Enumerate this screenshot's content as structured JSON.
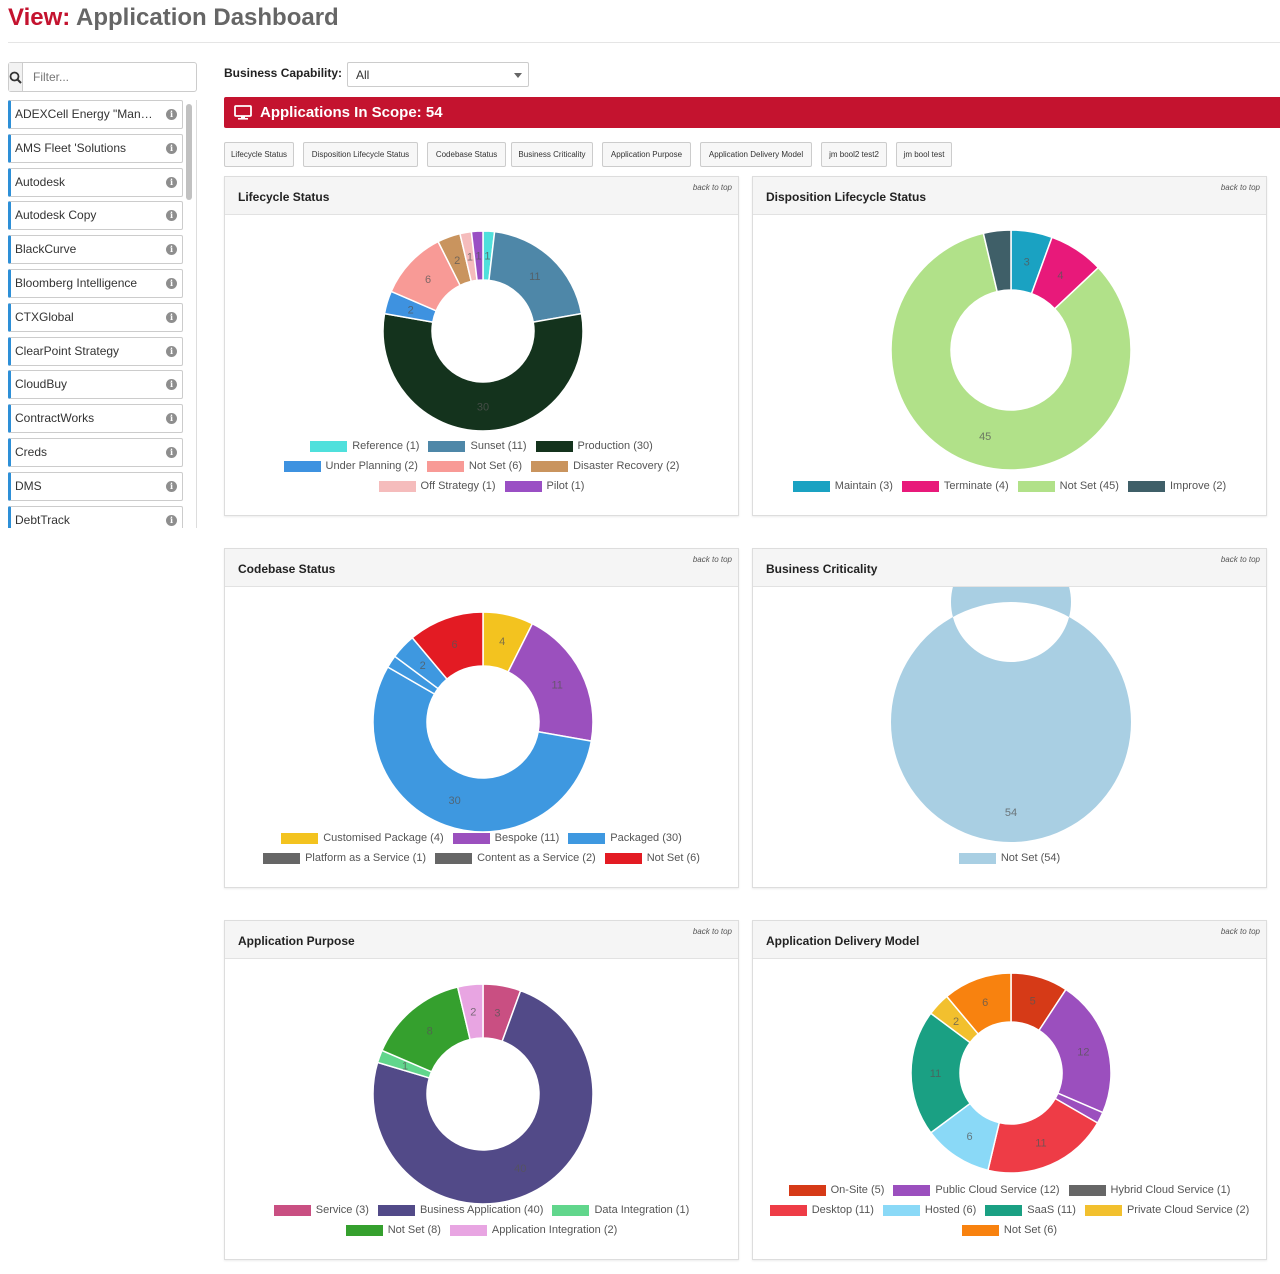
{
  "header": {
    "prefix": "View:",
    "title": "Application Dashboard"
  },
  "sidebar": {
    "search_placeholder": "Filter...",
    "info_glyph": "i",
    "items": [
      "ADEXCell Energy \"Manager\"",
      "AMS Fleet 'Solutions",
      "Autodesk",
      "Autodesk Copy",
      "BlackCurve",
      "Bloomberg Intelligence",
      "CTXGlobal",
      "ClearPoint Strategy",
      "CloudBuy",
      "ContractWorks",
      "Creds",
      "DMS",
      "DebtTrack"
    ]
  },
  "filter": {
    "label": "Business Capability:",
    "value": "All"
  },
  "scope": {
    "text": "Applications In Scope: 54",
    "icon": "monitor-icon"
  },
  "tabs": [
    "Lifecycle Status",
    "Disposition Lifecycle Status",
    "Codebase Status",
    "Business Criticality",
    "Application Purpose",
    "Application Delivery Model",
    "jm bool2 test2",
    "jm bool test"
  ],
  "back_to_top": "back to top",
  "chart_data": [
    {
      "type": "pie",
      "title": "Lifecycle Status",
      "labels": [
        "Reference",
        "Sunset",
        "Production",
        "Under Planning",
        "Not Set",
        "Disaster Recovery",
        "Off Strategy",
        "Pilot"
      ],
      "values": [
        1,
        11,
        30,
        2,
        6,
        2,
        1,
        1
      ],
      "colors": [
        "#4fe0dc",
        "#4e87a8",
        "#14331d",
        "#3e92e0",
        "#f89a96",
        "#c9945e",
        "#f5bcbc",
        "#9a4fc4"
      ],
      "slice_labels": [
        "1",
        "11",
        "30",
        "2",
        "6",
        "2",
        "1",
        "1"
      ],
      "legend": [
        [
          "Reference (1)",
          "Sunset (11)",
          "Production (30)"
        ],
        [
          "Under Planning (2)",
          "Not Set (6)",
          "Disaster Recovery (2)"
        ],
        [
          "Off Strategy (1)",
          "Pilot (1)"
        ]
      ]
    },
    {
      "type": "pie",
      "title": "Disposition Lifecycle Status",
      "labels": [
        "Maintain",
        "Terminate",
        "Not Set",
        "Improve"
      ],
      "values": [
        3,
        4,
        45,
        2
      ],
      "colors": [
        "#1aa2c2",
        "#e8197a",
        "#b1e189",
        "#3f5f68"
      ],
      "slice_labels": [
        "3",
        "4",
        "45",
        ""
      ],
      "legend": [
        [
          "Maintain (3)",
          "Terminate (4)",
          "Not Set (45)",
          "Improve (2)"
        ]
      ]
    },
    {
      "type": "pie",
      "title": "Codebase Status",
      "labels": [
        "Customised Package",
        "Bespoke",
        "Packaged",
        "Platform as a Service",
        "Content as a Service",
        "Not Set"
      ],
      "values": [
        4,
        11,
        30,
        1,
        2,
        6
      ],
      "colors": [
        "#f3c31f",
        "#9b50be",
        "#3e98e0",
        "#3e98e0",
        "#3e98e0",
        "#e31b23"
      ],
      "legend_colors": [
        "#f3c31f",
        "#9b50be",
        "#3e98e0",
        "#666666",
        "#666666",
        "#e31b23"
      ],
      "slice_labels": [
        "4",
        "11",
        "30",
        "",
        "2",
        "6"
      ],
      "legend": [
        [
          "Customised Package (4)",
          "Bespoke (11)",
          "Packaged (30)"
        ],
        [
          "Platform as a Service (1)",
          "Content as a Service (2)",
          "Not Set (6)"
        ]
      ]
    },
    {
      "type": "pie",
      "title": "Business Criticality",
      "labels": [
        "Not Set"
      ],
      "values": [
        54
      ],
      "colors": [
        "#a9cfe3"
      ],
      "slice_labels": [
        "54"
      ],
      "legend": [
        [
          "Not Set (54)"
        ]
      ]
    },
    {
      "type": "pie",
      "title": "Application Purpose",
      "labels": [
        "Service",
        "Business Application",
        "Data Integration",
        "Not Set",
        "Application Integration"
      ],
      "values": [
        3,
        40,
        1,
        8,
        2
      ],
      "colors": [
        "#c94f82",
        "#524a88",
        "#61d68c",
        "#35a02e",
        "#e8a5e2"
      ],
      "slice_labels": [
        "3",
        "40",
        "1",
        "8",
        "2"
      ],
      "legend": [
        [
          "Service (3)",
          "Business Application (40)",
          "Data Integration (1)"
        ],
        [
          "Not Set (8)",
          "Application Integration (2)"
        ]
      ]
    },
    {
      "type": "pie",
      "title": "Application Delivery Model",
      "labels": [
        "On-Site",
        "Public Cloud Service",
        "Hybrid Cloud Service",
        "Desktop",
        "Hosted",
        "SaaS",
        "Private Cloud Service",
        "Not Set"
      ],
      "values": [
        5,
        12,
        1,
        11,
        6,
        11,
        2,
        6
      ],
      "colors": [
        "#d63a17",
        "#9b4fbe",
        "#9b4fbe",
        "#ee3c46",
        "#8ad9f7",
        "#1aa083",
        "#f2c02e",
        "#f8820f"
      ],
      "legend_colors": [
        "#d63a17",
        "#9b4fbe",
        "#666666",
        "#ee3c46",
        "#8ad9f7",
        "#1aa083",
        "#f2c02e",
        "#f8820f"
      ],
      "slice_labels": [
        "5",
        "12",
        "",
        "11",
        "6",
        "11",
        "2",
        "6"
      ],
      "legend": [
        [
          "On-Site (5)",
          "Public Cloud Service (12)",
          "Hybrid Cloud Service (1)"
        ],
        [
          "Desktop (11)",
          "Hosted (6)",
          "SaaS (11)",
          "Private Cloud Service (2)"
        ],
        [
          "Not Set (6)"
        ]
      ]
    }
  ]
}
